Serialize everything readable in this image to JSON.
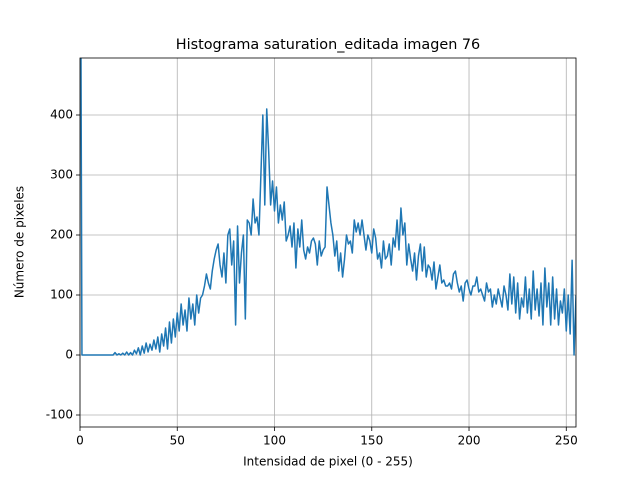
{
  "chart_data": {
    "type": "line",
    "title": "Histograma saturation_editada imagen 76",
    "xlabel": "Intensidad de pixel (0 - 255)",
    "ylabel": "Número de pixeles",
    "x": [
      0,
      1,
      2,
      3,
      4,
      5,
      6,
      7,
      8,
      9,
      10,
      11,
      12,
      13,
      14,
      15,
      16,
      17,
      18,
      19,
      20,
      21,
      22,
      23,
      24,
      25,
      26,
      27,
      28,
      29,
      30,
      31,
      32,
      33,
      34,
      35,
      36,
      37,
      38,
      39,
      40,
      41,
      42,
      43,
      44,
      45,
      46,
      47,
      48,
      49,
      50,
      51,
      52,
      53,
      54,
      55,
      56,
      57,
      58,
      59,
      60,
      61,
      62,
      63,
      64,
      65,
      66,
      67,
      68,
      69,
      70,
      71,
      72,
      73,
      74,
      75,
      76,
      77,
      78,
      79,
      80,
      81,
      82,
      83,
      84,
      85,
      86,
      87,
      88,
      89,
      90,
      91,
      92,
      93,
      94,
      95,
      96,
      97,
      98,
      99,
      100,
      101,
      102,
      103,
      104,
      105,
      106,
      107,
      108,
      109,
      110,
      111,
      112,
      113,
      114,
      115,
      116,
      117,
      118,
      119,
      120,
      121,
      122,
      123,
      124,
      125,
      126,
      127,
      128,
      129,
      130,
      131,
      132,
      133,
      134,
      135,
      136,
      137,
      138,
      139,
      140,
      141,
      142,
      143,
      144,
      145,
      146,
      147,
      148,
      149,
      150,
      151,
      152,
      153,
      154,
      155,
      156,
      157,
      158,
      159,
      160,
      161,
      162,
      163,
      164,
      165,
      166,
      167,
      168,
      169,
      170,
      171,
      172,
      173,
      174,
      175,
      176,
      177,
      178,
      179,
      180,
      181,
      182,
      183,
      184,
      185,
      186,
      187,
      188,
      189,
      190,
      191,
      192,
      193,
      194,
      195,
      196,
      197,
      198,
      199,
      200,
      201,
      202,
      203,
      204,
      205,
      206,
      207,
      208,
      209,
      210,
      211,
      212,
      213,
      214,
      215,
      216,
      217,
      218,
      219,
      220,
      221,
      222,
      223,
      224,
      225,
      226,
      227,
      228,
      229,
      230,
      231,
      232,
      233,
      234,
      235,
      236,
      237,
      238,
      239,
      240,
      241,
      242,
      243,
      244,
      245,
      246,
      247,
      248,
      249,
      250,
      251,
      252,
      253,
      254,
      255
    ],
    "series": [
      {
        "name": "saturation",
        "color": "#1f77b4",
        "values": [
          1000,
          0,
          0,
          0,
          0,
          0,
          0,
          0,
          0,
          0,
          0,
          0,
          0,
          0,
          0,
          0,
          0,
          0,
          4,
          0,
          2,
          0,
          3,
          0,
          5,
          0,
          4,
          0,
          8,
          2,
          12,
          0,
          15,
          3,
          20,
          5,
          18,
          8,
          25,
          10,
          30,
          5,
          35,
          15,
          45,
          10,
          55,
          20,
          60,
          30,
          70,
          40,
          85,
          50,
          75,
          40,
          95,
          60,
          85,
          50,
          100,
          70,
          95,
          100,
          115,
          135,
          120,
          110,
          140,
          160,
          175,
          185,
          150,
          130,
          170,
          120,
          200,
          210,
          150,
          190,
          50,
          215,
          120,
          170,
          200,
          60,
          225,
          220,
          200,
          260,
          220,
          230,
          200,
          300,
          400,
          250,
          410,
          340,
          250,
          290,
          240,
          280,
          220,
          250,
          225,
          255,
          190,
          200,
          215,
          180,
          220,
          145,
          210,
          180,
          225,
          175,
          160,
          180,
          170,
          190,
          195,
          185,
          150,
          190,
          165,
          175,
          180,
          280,
          250,
          220,
          200,
          165,
          190,
          140,
          170,
          130,
          160,
          200,
          185,
          190,
          170,
          225,
          205,
          220,
          200,
          225,
          200,
          175,
          200,
          190,
          170,
          210,
          195,
          160,
          170,
          145,
          190,
          160,
          165,
          185,
          150,
          195,
          180,
          225,
          175,
          245,
          200,
          220,
          150,
          185,
          160,
          140,
          170,
          125,
          165,
          185,
          140,
          180,
          130,
          150,
          145,
          125,
          155,
          110,
          130,
          150,
          120,
          125,
          115,
          115,
          120,
          110,
          135,
          140,
          120,
          105,
          115,
          90,
          120,
          125,
          110,
          100,
          115,
          115,
          130,
          105,
          110,
          100,
          90,
          120,
          105,
          110,
          80,
          100,
          85,
          110,
          95,
          80,
          115,
          100,
          75,
          135,
          85,
          130,
          70,
          120,
          60,
          95,
          80,
          130,
          70,
          110,
          60,
          140,
          75,
          110,
          65,
          120,
          50,
          145,
          80,
          120,
          50,
          130,
          60,
          110,
          50,
          90,
          70,
          110,
          40,
          100,
          35,
          158,
          0,
          100
        ]
      }
    ],
    "xlim": [
      0,
      255
    ],
    "ylim": [
      -120,
      495
    ],
    "xticks": [
      0,
      50,
      100,
      150,
      200,
      250
    ],
    "yticks": [
      -100,
      0,
      100,
      200,
      300,
      400
    ],
    "grid": true
  }
}
